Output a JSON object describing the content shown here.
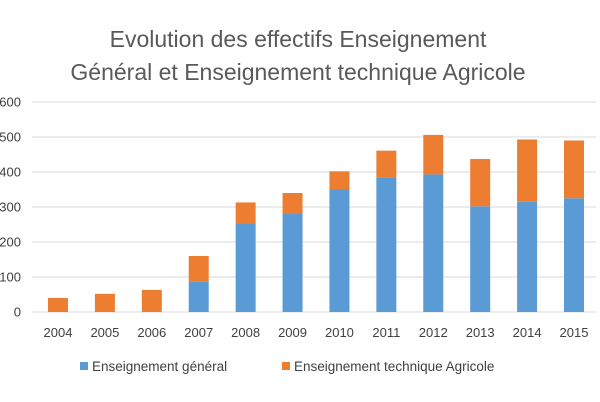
{
  "chart_data": {
    "type": "bar",
    "stacked": true,
    "title_lines": [
      "Evolution des effectifs Enseignement",
      "Général et Enseignement technique Agricole"
    ],
    "categories": [
      "2004",
      "2005",
      "2006",
      "2007",
      "2008",
      "2009",
      "2010",
      "2011",
      "2012",
      "2013",
      "2014",
      "2015"
    ],
    "series": [
      {
        "name": "Enseignement général",
        "color": "#5B9BD5",
        "values": [
          0,
          0,
          0,
          88,
          253,
          280,
          350,
          383,
          393,
          302,
          315,
          325
        ]
      },
      {
        "name": "Enseignement technique Agricole",
        "color": "#ED7D31",
        "values": [
          40,
          52,
          63,
          72,
          60,
          60,
          52,
          78,
          113,
          135,
          178,
          165
        ]
      }
    ],
    "y_tick_labels": [
      "0",
      "100",
      "200",
      "300",
      "400",
      "500",
      "600"
    ],
    "ylim": [
      0,
      600
    ],
    "grid": true,
    "legend_position": "bottom"
  }
}
